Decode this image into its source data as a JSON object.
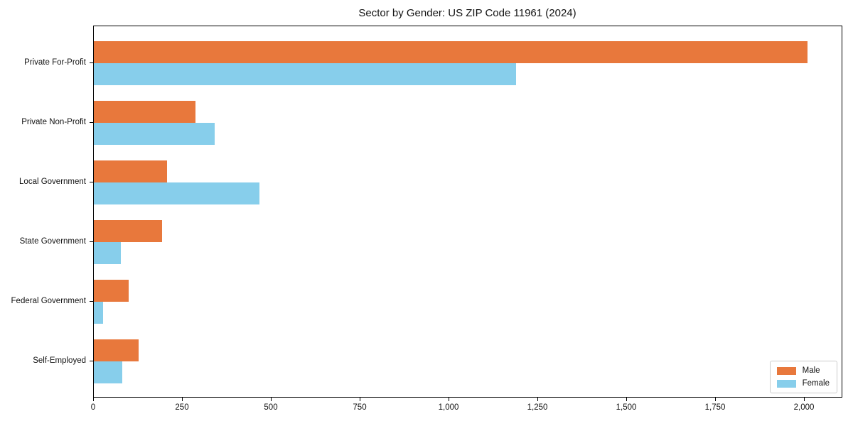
{
  "title": "Sector by Gender: US ZIP Code 11961 (2024)",
  "colors": {
    "male": "#e8783c",
    "female": "#87ceeb",
    "axis": "#000000",
    "legend_border": "#cccccc",
    "background": "#ffffff"
  },
  "legend": {
    "items": [
      {
        "label": "Male",
        "color": "#e8783c"
      },
      {
        "label": "Female",
        "color": "#87ceeb"
      }
    ],
    "position": "lower right"
  },
  "chart_data": {
    "type": "bar",
    "orientation": "horizontal",
    "title": "Sector by Gender: US ZIP Code 11961 (2024)",
    "categories": [
      "Private For-Profit",
      "Private Non-Profit",
      "Local Government",
      "State Government",
      "Federal Government",
      "Self-Employed"
    ],
    "series": [
      {
        "name": "Male",
        "color": "#e8783c",
        "values": [
          2008,
          286,
          206,
          192,
          98,
          126
        ]
      },
      {
        "name": "Female",
        "color": "#87ceeb",
        "values": [
          1188,
          340,
          466,
          76,
          26,
          80
        ]
      }
    ],
    "xlabel": "",
    "ylabel": "",
    "xlim": [
      0,
      2106
    ],
    "x_ticks": [
      0,
      250,
      500,
      750,
      1000,
      1250,
      1500,
      1750,
      2000
    ],
    "x_tick_labels": [
      "0",
      "250",
      "500",
      "750",
      "1,000",
      "1,250",
      "1,500",
      "1,750",
      "2,000"
    ],
    "grid": false,
    "legend_position": "lower right"
  }
}
